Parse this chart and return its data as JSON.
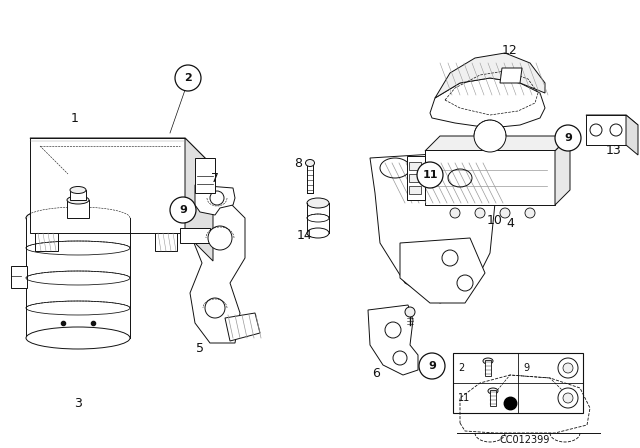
{
  "background_color": "#ffffff",
  "figsize": [
    6.4,
    4.48
  ],
  "dpi": 100,
  "watermark": "CC012399",
  "line_color": "#111111",
  "lw": 0.7,
  "label_fontsize": 9,
  "circle_label_fontsize": 8,
  "circle_r": 0.025
}
